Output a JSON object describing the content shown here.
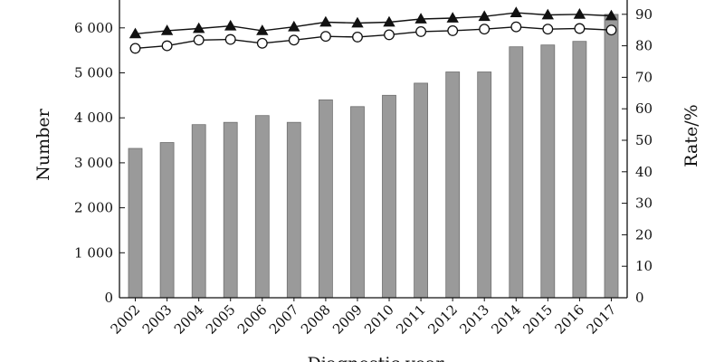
{
  "chart_data": {
    "type": "bar",
    "xlabel": "Diagnostic year",
    "ylabel_left": "Number",
    "ylabel_right": "Rate/%",
    "categories": [
      "2002",
      "2003",
      "2004",
      "2005",
      "2006",
      "2007",
      "2008",
      "2009",
      "2010",
      "2011",
      "2012",
      "2013",
      "2014",
      "2015",
      "2016",
      "2017"
    ],
    "ylim_left": [
      0,
      6000
    ],
    "yticks_left": [
      0,
      1000,
      2000,
      3000,
      4000,
      5000,
      6000
    ],
    "ytick_labels_left": [
      "0",
      "1 000",
      "2 000",
      "3 000",
      "4 000",
      "5 000",
      "6 000"
    ],
    "ylim_right": [
      0,
      90
    ],
    "yticks_right": [
      0,
      10,
      20,
      30,
      40,
      50,
      60,
      70,
      80,
      90
    ],
    "series": [
      {
        "type": "bar",
        "axis": "left",
        "color": "#9a9a9a",
        "values": [
          3320,
          3450,
          3850,
          3900,
          4050,
          3900,
          4400,
          4250,
          4500,
          4770,
          5020,
          5020,
          5580,
          5620,
          5700,
          6300
        ]
      },
      {
        "type": "line",
        "axis": "right",
        "marker": "filled-triangle",
        "color": "#111111",
        "values": [
          83.8,
          84.8,
          85.5,
          86.3,
          84.8,
          86.0,
          87.5,
          87.2,
          87.5,
          88.5,
          88.8,
          89.3,
          90.5,
          89.8,
          90.0,
          89.5
        ]
      },
      {
        "type": "line",
        "axis": "right",
        "marker": "open-circle",
        "color": "#111111",
        "values": [
          79.2,
          80.0,
          81.8,
          82.0,
          80.8,
          81.8,
          83.0,
          82.8,
          83.5,
          84.5,
          84.8,
          85.3,
          86.0,
          85.3,
          85.5,
          85.0
        ]
      }
    ]
  }
}
